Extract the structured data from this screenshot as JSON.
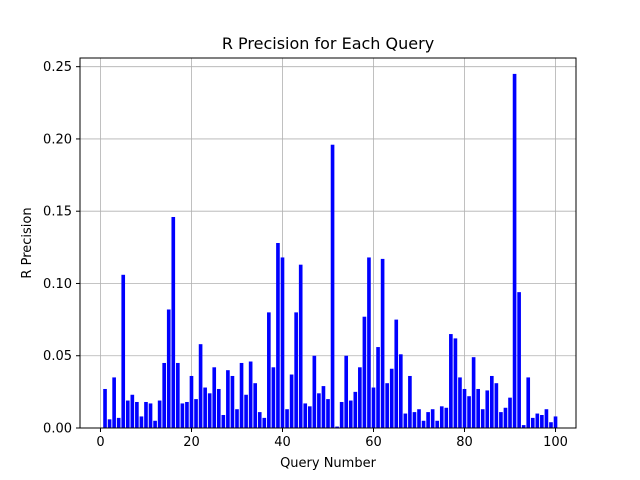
{
  "chart_data": {
    "type": "bar",
    "title": "R Precision for Each Query",
    "xlabel": "Query Number",
    "ylabel": "R Precision",
    "xlim": [
      -4.5,
      104.5
    ],
    "ylim": [
      0,
      0.256
    ],
    "xticks": [
      0,
      20,
      40,
      60,
      80,
      100
    ],
    "yticks": [
      0.0,
      0.05,
      0.1,
      0.15,
      0.2,
      0.25
    ],
    "xtick_labels": [
      "0",
      "20",
      "40",
      "60",
      "80",
      "100"
    ],
    "ytick_labels": [
      "0.00",
      "0.05",
      "0.10",
      "0.15",
      "0.20",
      "0.25"
    ],
    "grid": true,
    "bar_color": "#0000ff",
    "x": [
      1,
      2,
      3,
      4,
      5,
      6,
      7,
      8,
      9,
      10,
      11,
      12,
      13,
      14,
      15,
      16,
      17,
      18,
      19,
      20,
      21,
      22,
      23,
      24,
      25,
      26,
      27,
      28,
      29,
      30,
      31,
      32,
      33,
      34,
      35,
      36,
      37,
      38,
      39,
      40,
      41,
      42,
      43,
      44,
      45,
      46,
      47,
      48,
      49,
      50,
      51,
      52,
      53,
      54,
      55,
      56,
      57,
      58,
      59,
      60,
      61,
      62,
      63,
      64,
      65,
      66,
      67,
      68,
      69,
      70,
      71,
      72,
      73,
      74,
      75,
      76,
      77,
      78,
      79,
      80,
      81,
      82,
      83,
      84,
      85,
      86,
      87,
      88,
      89,
      90,
      91,
      92,
      93,
      94,
      95,
      96,
      97,
      98,
      99,
      100
    ],
    "values": [
      0.027,
      0.006,
      0.035,
      0.007,
      0.106,
      0.019,
      0.023,
      0.018,
      0.008,
      0.018,
      0.017,
      0.005,
      0.019,
      0.045,
      0.082,
      0.146,
      0.045,
      0.017,
      0.018,
      0.036,
      0.02,
      0.058,
      0.028,
      0.024,
      0.042,
      0.027,
      0.009,
      0.04,
      0.036,
      0.013,
      0.045,
      0.023,
      0.046,
      0.031,
      0.011,
      0.007,
      0.08,
      0.042,
      0.128,
      0.118,
      0.013,
      0.037,
      0.08,
      0.113,
      0.017,
      0.015,
      0.05,
      0.024,
      0.029,
      0.02,
      0.196,
      0.001,
      0.018,
      0.05,
      0.019,
      0.025,
      0.042,
      0.077,
      0.118,
      0.028,
      0.056,
      0.117,
      0.031,
      0.041,
      0.075,
      0.051,
      0.01,
      0.036,
      0.011,
      0.013,
      0.005,
      0.011,
      0.013,
      0.005,
      0.015,
      0.014,
      0.065,
      0.062,
      0.035,
      0.027,
      0.022,
      0.049,
      0.027,
      0.013,
      0.026,
      0.036,
      0.031,
      0.011,
      0.014,
      0.021,
      0.245,
      0.094,
      0.002,
      0.035,
      0.007,
      0.01,
      0.009,
      0.013,
      0.004,
      0.008
    ]
  }
}
